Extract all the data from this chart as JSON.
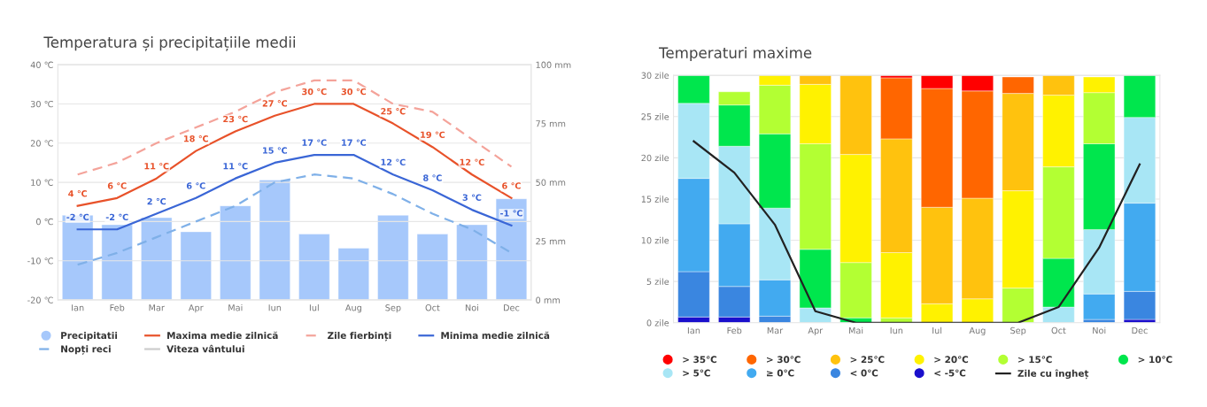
{
  "chart_data": [
    {
      "type": "bar",
      "title": "Temperatura și precipitațiile medii",
      "categories": [
        "Ian",
        "Feb",
        "Mar",
        "Apr",
        "Mai",
        "Iun",
        "Iul",
        "Aug",
        "Sep",
        "Oct",
        "Noi",
        "Dec"
      ],
      "series": [
        {
          "name": "Precipitatii",
          "type": "bar",
          "axis": "y2",
          "color": "#a6c8fb",
          "values": [
            36,
            32,
            35,
            29,
            40,
            51,
            28,
            22,
            36,
            28,
            32,
            43
          ]
        },
        {
          "name": "Maxima medie zilnică",
          "type": "line",
          "color": "#e8522a",
          "values": [
            4,
            6,
            11,
            18,
            23,
            27,
            30,
            30,
            25,
            19,
            12,
            6
          ],
          "value_labels": [
            "4 ℃",
            "6 ℃",
            "11 ℃",
            "18 ℃",
            "23 ℃",
            "27 ℃",
            "30 ℃",
            "30 ℃",
            "25 ℃",
            "19 ℃",
            "12 ℃",
            "6 ℃"
          ]
        },
        {
          "name": "Zile fierbinți",
          "type": "line",
          "line_style": "dashed",
          "color": "#f4a39a",
          "values": [
            12,
            15,
            20,
            24,
            28,
            33,
            36,
            36,
            30,
            28,
            21,
            14
          ]
        },
        {
          "name": "Minima medie zilnică",
          "type": "line",
          "color": "#3a66d6",
          "values": [
            -2,
            -2,
            2,
            6,
            11,
            15,
            17,
            17,
            12,
            8,
            3,
            -1
          ],
          "value_labels": [
            "-2 ℃",
            "-2 ℃",
            "2 ℃",
            "6 ℃",
            "11 ℃",
            "15 ℃",
            "17 ℃",
            "17 ℃",
            "12 ℃",
            "8 ℃",
            "3 ℃",
            "-1 ℃"
          ]
        },
        {
          "name": "Nopți reci",
          "type": "line",
          "line_style": "dashed",
          "color": "#7fb0e8",
          "values": [
            -11,
            -8,
            -4,
            0,
            4,
            10,
            12,
            11,
            7,
            2,
            -2,
            -8
          ]
        },
        {
          "name": "Viteza vântului",
          "type": "line",
          "color": "#cccccc",
          "values": [
            null,
            null,
            null,
            null,
            null,
            null,
            null,
            null,
            null,
            null,
            null,
            null
          ]
        }
      ],
      "ylim": [
        -20,
        40
      ],
      "yticks": [
        {
          "value": -20,
          "label": "-20 ℃"
        },
        {
          "value": -10,
          "label": "-10 ℃"
        },
        {
          "value": 0,
          "label": "0 ℃"
        },
        {
          "value": 10,
          "label": "10 ℃"
        },
        {
          "value": 20,
          "label": "20 ℃"
        },
        {
          "value": 30,
          "label": "30 ℃"
        },
        {
          "value": 40,
          "label": "40 ℃"
        }
      ],
      "y2lim": [
        0,
        100
      ],
      "y2ticks": [
        {
          "value": 0,
          "label": "0 mm"
        },
        {
          "value": 25,
          "label": "25 mm"
        },
        {
          "value": 50,
          "label": "50 mm"
        },
        {
          "value": 75,
          "label": "75 mm"
        },
        {
          "value": 100,
          "label": "100 mm"
        }
      ],
      "grid": "y",
      "legend": "bottom"
    },
    {
      "type": "bar",
      "title": "Temperaturi maxime",
      "stacked": true,
      "categories": [
        "Ian",
        "Feb",
        "Mar",
        "Apr",
        "Mai",
        "Iun",
        "Iul",
        "Aug",
        "Sep",
        "Oct",
        "Noi",
        "Dec"
      ],
      "series": [
        {
          "name": "< -5℃",
          "color": "#1a0fcc",
          "values": [
            0.7,
            0.7,
            null,
            null,
            null,
            null,
            null,
            null,
            null,
            null,
            null,
            0.4
          ]
        },
        {
          "name": "< 0℃",
          "color": "#3a86e0",
          "values": [
            5.5,
            3.7,
            0.8,
            null,
            null,
            null,
            null,
            null,
            null,
            null,
            0.4,
            3.4
          ]
        },
        {
          "name": "≥ 0℃",
          "color": "#42aaf0",
          "values": [
            11.3,
            7.6,
            4.4,
            null,
            null,
            null,
            null,
            null,
            null,
            null,
            3.1,
            10.7
          ]
        },
        {
          "name": "> 5℃",
          "color": "#a8e6f5",
          "values": [
            9.1,
            9.4,
            8.7,
            1.8,
            null,
            null,
            null,
            null,
            null,
            1.9,
            7.8,
            10.4
          ]
        },
        {
          "name": "> 10℃",
          "color": "#00e64d",
          "values": [
            3.4,
            5.0,
            9.0,
            7.1,
            0.6,
            null,
            null,
            null,
            null,
            5.9,
            10.4,
            5.1
          ]
        },
        {
          "name": "> 15℃",
          "color": "#b3ff33",
          "values": [
            null,
            1.6,
            5.9,
            12.8,
            6.7,
            0.6,
            null,
            null,
            4.2,
            11.1,
            6.2,
            null
          ]
        },
        {
          "name": "> 20℃",
          "color": "#fff200",
          "values": [
            null,
            null,
            1.2,
            7.2,
            13.1,
            7.9,
            2.3,
            2.9,
            11.8,
            8.7,
            1.9,
            null
          ]
        },
        {
          "name": "> 25℃",
          "color": "#ffc20e",
          "values": [
            null,
            null,
            null,
            1.1,
            9.6,
            13.8,
            11.7,
            12.2,
            11.8,
            2.4,
            null,
            null
          ]
        },
        {
          "name": "> 30℃",
          "color": "#ff6600",
          "values": [
            null,
            null,
            null,
            null,
            null,
            7.4,
            14.4,
            13.0,
            2.0,
            null,
            null,
            null
          ]
        },
        {
          "name": "> 35℃",
          "color": "#ff0000",
          "values": [
            null,
            null,
            null,
            null,
            null,
            0.3,
            1.6,
            1.9,
            null,
            null,
            null,
            null
          ]
        },
        {
          "name": "Zile cu îngheț",
          "type": "line",
          "color": "#222222",
          "values": [
            22,
            18.2,
            11.9,
            1.4,
            0,
            0,
            0,
            0,
            0,
            1.9,
            9.1,
            19.2
          ]
        }
      ],
      "ylim": [
        0,
        30
      ],
      "yticks": [
        {
          "value": 0,
          "label": "0 zile"
        },
        {
          "value": 5,
          "label": "5 zile"
        },
        {
          "value": 10,
          "label": "10 zile"
        },
        {
          "value": 15,
          "label": "15 zile"
        },
        {
          "value": 20,
          "label": "20 zile"
        },
        {
          "value": 25,
          "label": "25 zile"
        },
        {
          "value": 30,
          "label": "30 zile"
        }
      ],
      "grid": "y",
      "legend": "bottom"
    }
  ]
}
